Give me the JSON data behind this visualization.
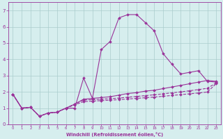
{
  "xlabel": "Windchill (Refroidissement éolien,°C)",
  "background_color": "#d6eeee",
  "grid_color": "#aacccc",
  "line_color": "#993399",
  "xlim": [
    -0.5,
    23.5
  ],
  "ylim": [
    0,
    7.5
  ],
  "xticks": [
    0,
    1,
    2,
    3,
    4,
    5,
    6,
    7,
    8,
    9,
    10,
    11,
    12,
    13,
    14,
    15,
    16,
    17,
    18,
    19,
    20,
    21,
    22,
    23
  ],
  "yticks": [
    0,
    1,
    2,
    3,
    4,
    5,
    6,
    7
  ],
  "series1_x": [
    0,
    1,
    2,
    3,
    4,
    5,
    6,
    7,
    8,
    9,
    10,
    11,
    12,
    13,
    14,
    15,
    16,
    17,
    18,
    19,
    20,
    21,
    22,
    23
  ],
  "series1_y": [
    1.85,
    1.0,
    1.05,
    0.5,
    0.7,
    0.75,
    1.0,
    1.0,
    2.85,
    1.6,
    4.6,
    5.1,
    6.55,
    6.75,
    6.75,
    6.25,
    5.75,
    4.35,
    3.7,
    3.1,
    3.2,
    3.3,
    2.65,
    2.6
  ],
  "series2_x": [
    0,
    1,
    2,
    3,
    4,
    5,
    6,
    7,
    8,
    9,
    10,
    11,
    12,
    13,
    14,
    15,
    16,
    17,
    18,
    19,
    20,
    21,
    22,
    23
  ],
  "series2_y": [
    1.85,
    1.0,
    1.05,
    0.5,
    0.7,
    0.75,
    1.0,
    1.25,
    1.55,
    1.6,
    1.65,
    1.7,
    1.8,
    1.9,
    1.95,
    2.05,
    2.1,
    2.2,
    2.3,
    2.4,
    2.5,
    2.6,
    2.7,
    2.65
  ],
  "series3_x": [
    0,
    1,
    2,
    3,
    4,
    5,
    6,
    7,
    8,
    9,
    10,
    11,
    12,
    13,
    14,
    15,
    16,
    17,
    18,
    19,
    20,
    21,
    22,
    23
  ],
  "series3_y": [
    1.85,
    1.0,
    1.05,
    0.5,
    0.7,
    0.75,
    1.0,
    1.25,
    1.5,
    1.52,
    1.55,
    1.58,
    1.62,
    1.67,
    1.72,
    1.77,
    1.82,
    1.88,
    1.94,
    2.0,
    2.07,
    2.14,
    2.22,
    2.55
  ],
  "series4_x": [
    0,
    1,
    2,
    3,
    4,
    5,
    6,
    7,
    8,
    9,
    10,
    11,
    12,
    13,
    14,
    15,
    16,
    17,
    18,
    19,
    20,
    21,
    22,
    23
  ],
  "series4_y": [
    1.85,
    1.0,
    1.05,
    0.5,
    0.7,
    0.75,
    1.0,
    1.2,
    1.4,
    1.43,
    1.46,
    1.49,
    1.52,
    1.56,
    1.6,
    1.64,
    1.68,
    1.73,
    1.78,
    1.83,
    1.88,
    1.93,
    1.99,
    2.5
  ]
}
